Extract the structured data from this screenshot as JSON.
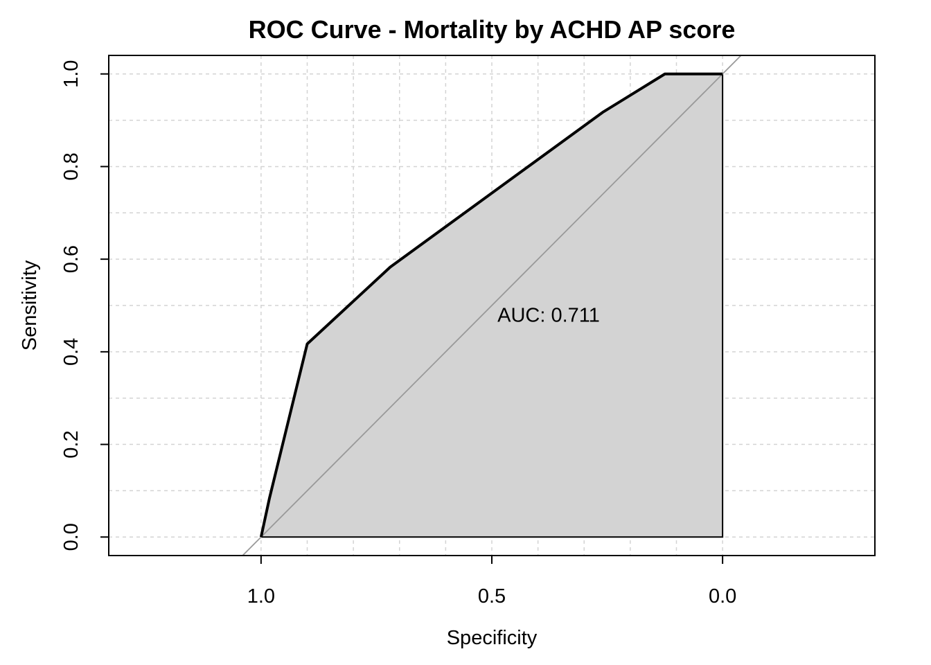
{
  "chart_data": {
    "type": "line",
    "title": "ROC Curve - Mortality by ACHD AP score",
    "xlabel": "Specificity",
    "ylabel": "Sensitivity",
    "x_reversed": true,
    "xlim": [
      1.33,
      -0.33
    ],
    "ylim": [
      -0.04,
      1.04
    ],
    "x_ticks": [
      1.0,
      0.5,
      0.0
    ],
    "x_tick_labels": [
      "1.0",
      "0.5",
      "0.0"
    ],
    "y_ticks": [
      0.0,
      0.2,
      0.4,
      0.6,
      0.8,
      1.0
    ],
    "y_tick_labels": [
      "0.0",
      "0.2",
      "0.4",
      "0.6",
      "0.8",
      "1.0"
    ],
    "grid": true,
    "grid_x": [
      1.0,
      0.9,
      0.8,
      0.7,
      0.6,
      0.5,
      0.4,
      0.3,
      0.2,
      0.1,
      0.0
    ],
    "grid_y": [
      0.0,
      0.1,
      0.2,
      0.3,
      0.4,
      0.5,
      0.6,
      0.7,
      0.8,
      0.9,
      1.0
    ],
    "series": [
      {
        "name": "ROC",
        "specificity": [
          1.0,
          0.982,
          0.9,
          0.72,
          0.26,
          0.125,
          0.0
        ],
        "sensitivity": [
          0.0,
          0.083,
          0.417,
          0.583,
          0.917,
          1.0,
          1.0
        ],
        "fill": "#d3d3d3",
        "color": "#000000"
      }
    ],
    "reference_line": {
      "from": [
        1.0,
        0.0
      ],
      "to": [
        0.0,
        1.0
      ],
      "color": "#999999"
    },
    "annotation": "AUC: 0.711",
    "annotation_pos": [
      0.5,
      0.48
    ]
  }
}
